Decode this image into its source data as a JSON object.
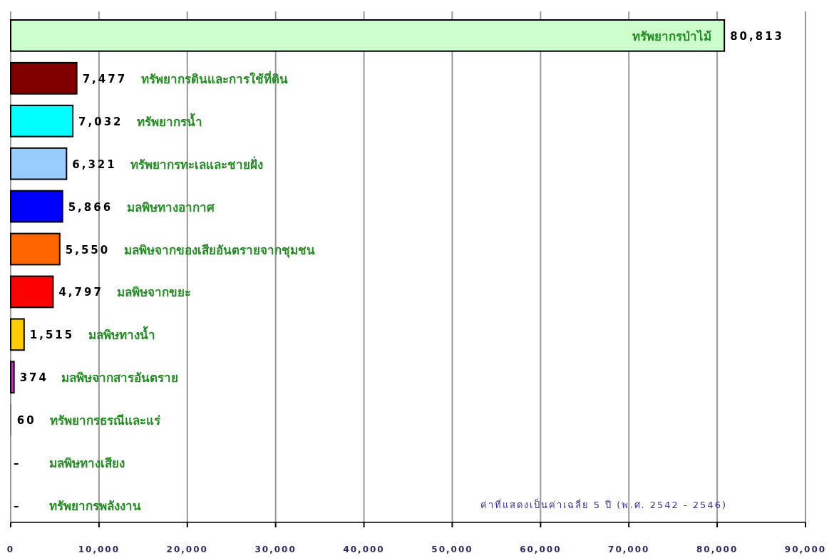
{
  "chart_data": {
    "type": "bar",
    "orientation": "horizontal",
    "categories": [
      "ทรัพยากรป่าไม้",
      "ทรัพยากรดินและการใช้ที่ดิน",
      "ทรัพยากรน้ำ",
      "ทรัพยากรทะเลและชายฝั่ง",
      "มลพิษทางอากาศ",
      "มลพิษจากของเสียอันตรายจากชุมชน",
      "มลพิษจากขยะ",
      "มลพิษทางน้ำ",
      "มลพิษจากสารอันตราย",
      "ทรัพยากรธรณีและแร่",
      "มลพิษทางเสียง",
      "ทรัพยากรพลังงาน"
    ],
    "values": [
      80813,
      7477,
      7032,
      6321,
      5866,
      5550,
      4797,
      1515,
      374,
      60,
      null,
      null
    ],
    "value_labels": [
      "80,813",
      "7,477",
      "7,032",
      "6,321",
      "5,866",
      "5,550",
      "4,797",
      "1,515",
      "374",
      "60",
      "–",
      "–"
    ],
    "colors": [
      "#ccffcc",
      "#800000",
      "#00ffff",
      "#99ccff",
      "#0000ff",
      "#ff6600",
      "#ff0000",
      "#ffcc00",
      "#cc33cc",
      "#9999ff",
      "#000000",
      "#000000"
    ],
    "xlim": [
      0,
      90000
    ],
    "xticks": [
      0,
      {
        "value": 10000,
        "label": "10,000"
      },
      {
        "value": 20000,
        "label": "20,000"
      },
      {
        "value": 30000,
        "label": "30,000"
      },
      {
        "value": 40000,
        "label": "40,000"
      },
      {
        "value": 50000,
        "label": "50,000"
      },
      {
        "value": 60000,
        "label": "60,000"
      },
      {
        "value": 70000,
        "label": "70,000"
      },
      {
        "value": 80000,
        "label": "80,000"
      },
      {
        "value": 90000,
        "label": "90,000"
      }
    ],
    "grid": "x",
    "annotations": [
      "ค่าที่แสดงเป็นค่าเฉลี่ย 5 ปี (พ.ศ. 2542 - 2546)"
    ]
  }
}
